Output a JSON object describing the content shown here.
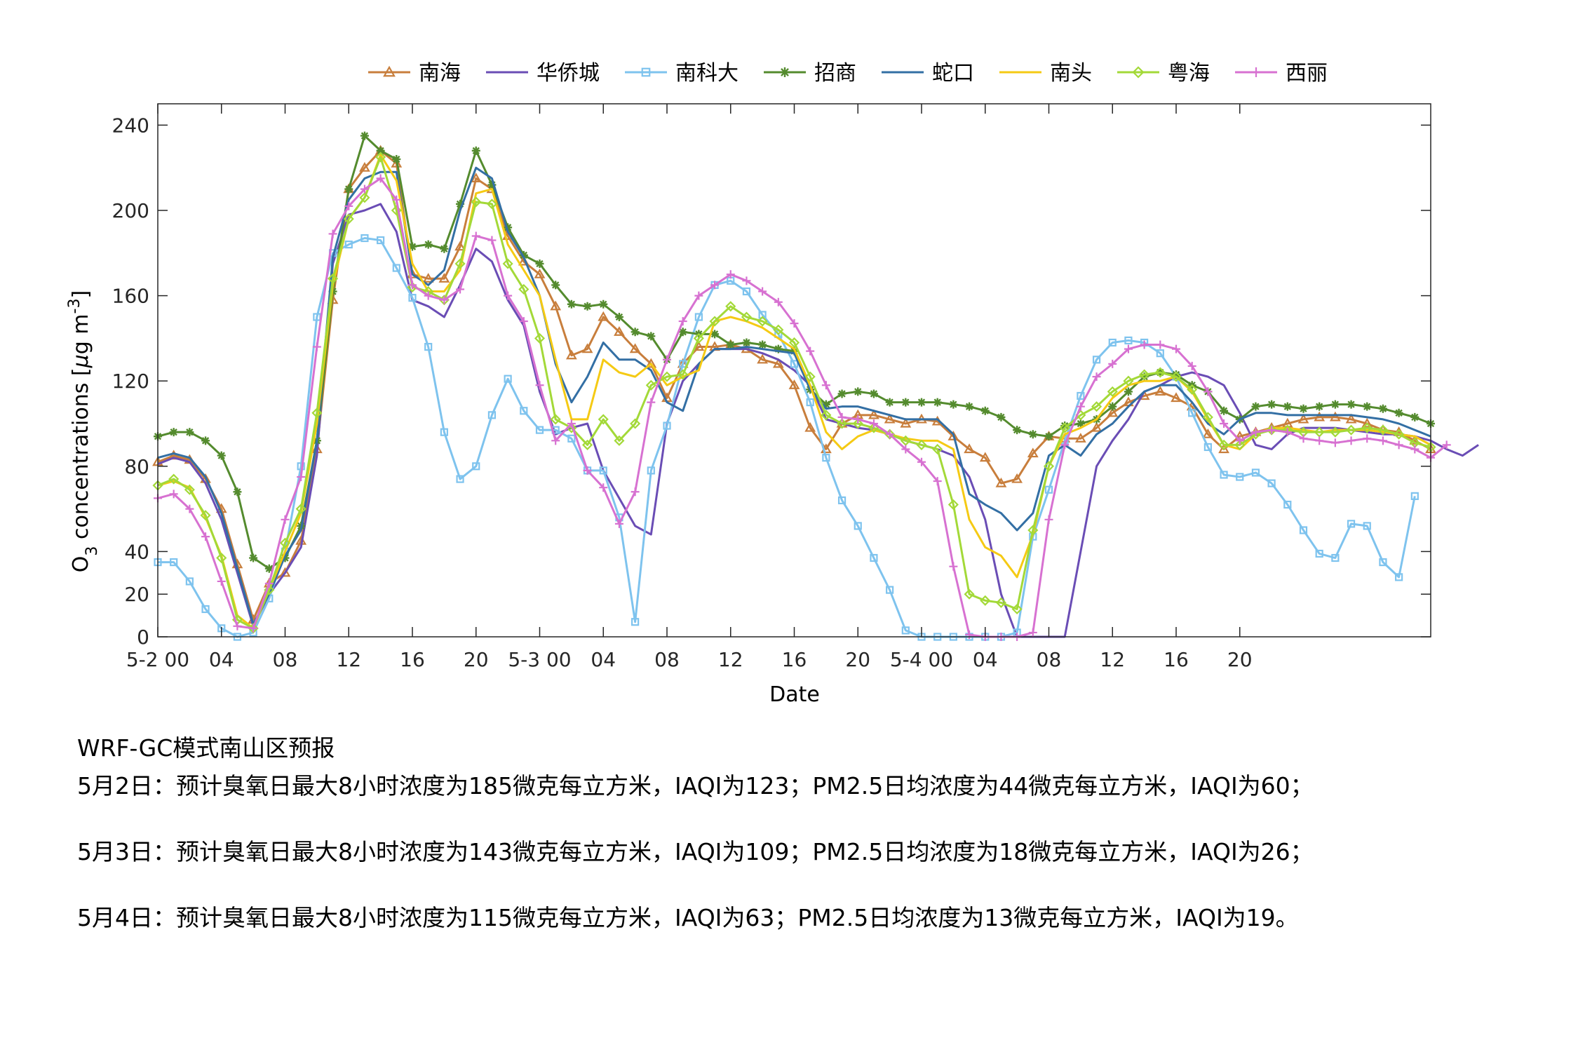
{
  "chart_data": {
    "type": "line",
    "xlabel": "Date",
    "ylabel_main": "O",
    "ylabel_sub": "3",
    "ylabel_rest": " concentrations [",
    "ylabel_mu": "μ",
    "ylabel_unit": "g m",
    "ylabel_sup": "-3",
    "ylabel_end": "]",
    "ylim": [
      0,
      250
    ],
    "yticks": [
      0,
      20,
      40,
      80,
      120,
      160,
      200,
      240
    ],
    "xlim": [
      0,
      80
    ],
    "xticks": [
      {
        "x": 0,
        "label": "5-2 00"
      },
      {
        "x": 4,
        "label": "04"
      },
      {
        "x": 8,
        "label": "08"
      },
      {
        "x": 12,
        "label": "12"
      },
      {
        "x": 16,
        "label": "16"
      },
      {
        "x": 20,
        "label": "20"
      },
      {
        "x": 24,
        "label": "5-3 00"
      },
      {
        "x": 28,
        "label": "04"
      },
      {
        "x": 32,
        "label": "08"
      },
      {
        "x": 36,
        "label": "12"
      },
      {
        "x": 40,
        "label": "16"
      },
      {
        "x": 44,
        "label": "20"
      },
      {
        "x": 48,
        "label": "5-4 00"
      },
      {
        "x": 52,
        "label": "04"
      },
      {
        "x": 56,
        "label": "08"
      },
      {
        "x": 60,
        "label": "12"
      },
      {
        "x": 64,
        "label": "16"
      },
      {
        "x": 68,
        "label": "20"
      }
    ],
    "legend_position": "top-center",
    "series": [
      {
        "name": "南海",
        "color": "#C87E3C",
        "marker": "triangle",
        "values": [
          82,
          85,
          83,
          74,
          60,
          34,
          8,
          25,
          30,
          45,
          88,
          158,
          210,
          220,
          228,
          222,
          170,
          168,
          168,
          183,
          215,
          210,
          188,
          176,
          170,
          155,
          132,
          135,
          150,
          143,
          135,
          128,
          112,
          128,
          136,
          136,
          137,
          135,
          130,
          128,
          118,
          98,
          88,
          100,
          104,
          104,
          102,
          100,
          102,
          101,
          94,
          88,
          84,
          72,
          74,
          86,
          94,
          93,
          93,
          98,
          105,
          110,
          113,
          115,
          112,
          108,
          95,
          88,
          94,
          96,
          98,
          100,
          102,
          103,
          103,
          102,
          100,
          97,
          96,
          92,
          88
        ]
      },
      {
        "name": "华侨城",
        "color": "#6A4DB5",
        "marker": "none",
        "values": [
          81,
          84,
          82,
          72,
          55,
          30,
          5,
          20,
          30,
          42,
          85,
          175,
          198,
          200,
          203,
          190,
          158,
          155,
          150,
          165,
          182,
          176,
          158,
          146,
          115,
          95,
          98,
          100,
          78,
          65,
          52,
          48,
          100,
          120,
          128,
          135,
          135,
          135,
          133,
          130,
          125,
          118,
          102,
          100,
          98,
          97,
          95,
          92,
          90,
          88,
          85,
          75,
          55,
          20,
          0,
          0,
          0,
          0,
          40,
          80,
          92,
          102,
          115,
          118,
          122,
          124,
          122,
          118,
          105,
          90,
          88,
          95,
          98,
          98,
          98,
          97,
          96,
          95,
          95,
          94,
          92,
          88,
          85,
          90
        ]
      },
      {
        "name": "南科大",
        "color": "#7EC3EE",
        "marker": "square",
        "values": [
          35,
          35,
          26,
          13,
          4,
          0,
          2,
          18,
          40,
          80,
          150,
          180,
          184,
          187,
          186,
          173,
          159,
          136,
          96,
          74,
          80,
          104,
          121,
          106,
          97,
          97,
          93,
          78,
          78,
          56,
          7,
          78,
          99,
          128,
          150,
          165,
          167,
          162,
          151,
          142,
          128,
          110,
          84,
          64,
          52,
          37,
          22,
          3,
          0,
          0,
          0,
          0,
          0,
          0,
          2,
          47,
          69,
          92,
          113,
          130,
          138,
          139,
          138,
          133,
          122,
          105,
          89,
          76,
          75,
          77,
          72,
          62,
          50,
          39,
          37,
          53,
          52,
          35,
          28,
          66
        ]
      },
      {
        "name": "招商",
        "color": "#548B2E",
        "marker": "star",
        "values": [
          94,
          96,
          96,
          92,
          85,
          68,
          37,
          32,
          37,
          52,
          92,
          162,
          210,
          235,
          228,
          224,
          183,
          184,
          182,
          203,
          228,
          212,
          192,
          179,
          175,
          165,
          156,
          155,
          156,
          150,
          143,
          141,
          130,
          143,
          142,
          142,
          137,
          138,
          137,
          135,
          134,
          116,
          109,
          114,
          115,
          114,
          110,
          110,
          110,
          110,
          109,
          108,
          106,
          103,
          97,
          95,
          94,
          99,
          100,
          102,
          108,
          115,
          122,
          124,
          123,
          118,
          115,
          106,
          102,
          108,
          109,
          108,
          107,
          108,
          109,
          109,
          108,
          107,
          105,
          103,
          100
        ]
      },
      {
        "name": "蛇口",
        "color": "#336FA4",
        "marker": "none",
        "values": [
          84,
          86,
          84,
          75,
          58,
          32,
          6,
          20,
          38,
          50,
          92,
          178,
          205,
          215,
          218,
          218,
          170,
          165,
          172,
          200,
          220,
          215,
          190,
          178,
          160,
          128,
          110,
          122,
          138,
          130,
          130,
          125,
          110,
          106,
          128,
          135,
          135,
          136,
          135,
          134,
          133,
          116,
          107,
          108,
          108,
          106,
          104,
          102,
          102,
          102,
          95,
          67,
          62,
          58,
          50,
          58,
          85,
          90,
          85,
          95,
          100,
          108,
          115,
          118,
          118,
          110,
          100,
          95,
          102,
          105,
          105,
          104,
          104,
          104,
          104,
          104,
          103,
          102,
          100,
          97,
          94
        ]
      },
      {
        "name": "南头",
        "color": "#F5CA14",
        "marker": "none",
        "values": [
          71,
          73,
          70,
          56,
          38,
          10,
          4,
          22,
          40,
          58,
          100,
          165,
          196,
          206,
          226,
          214,
          175,
          162,
          162,
          172,
          208,
          210,
          184,
          172,
          160,
          130,
          102,
          102,
          130,
          124,
          122,
          128,
          118,
          122,
          125,
          148,
          150,
          148,
          145,
          140,
          135,
          118,
          96,
          88,
          94,
          97,
          95,
          93,
          92,
          92,
          88,
          55,
          42,
          38,
          28,
          48,
          80,
          95,
          98,
          102,
          112,
          118,
          120,
          120,
          122,
          115,
          102,
          90,
          88,
          95,
          98,
          98,
          97,
          96,
          97,
          97,
          97,
          96,
          95,
          94,
          90
        ]
      },
      {
        "name": "粤海",
        "color": "#A3D938",
        "marker": "diamond",
        "values": [
          71,
          74,
          69,
          57,
          37,
          8,
          4,
          22,
          44,
          60,
          105,
          168,
          196,
          206,
          225,
          200,
          164,
          162,
          158,
          175,
          204,
          203,
          175,
          163,
          140,
          102,
          98,
          90,
          102,
          92,
          100,
          118,
          122,
          123,
          140,
          148,
          155,
          150,
          148,
          144,
          138,
          122,
          104,
          100,
          100,
          98,
          95,
          92,
          90,
          88,
          62,
          20,
          17,
          16,
          13,
          50,
          80,
          98,
          104,
          108,
          115,
          120,
          123,
          124,
          122,
          116,
          103,
          90,
          90,
          95,
          97,
          97,
          96,
          96,
          96,
          97,
          98,
          97,
          95,
          91,
          89
        ]
      },
      {
        "name": "西丽",
        "color": "#D771D1",
        "marker": "plus",
        "values": [
          65,
          67,
          60,
          47,
          26,
          5,
          4,
          25,
          55,
          75,
          136,
          189,
          202,
          210,
          215,
          205,
          165,
          160,
          158,
          163,
          188,
          186,
          160,
          148,
          118,
          92,
          100,
          78,
          70,
          53,
          68,
          110,
          130,
          148,
          160,
          165,
          170,
          167,
          162,
          157,
          147,
          134,
          118,
          103,
          102,
          100,
          95,
          88,
          82,
          73,
          33,
          1,
          0,
          0,
          0,
          2,
          55,
          90,
          108,
          122,
          128,
          135,
          137,
          137,
          135,
          127,
          115,
          100,
          92,
          96,
          97,
          96,
          93,
          92,
          91,
          92,
          93,
          92,
          90,
          88,
          84,
          90
        ]
      }
    ]
  },
  "forecast": {
    "title": "WRF-GC模式南山区预报",
    "lines": [
      "5月2日：预计臭氧日最大8小时浓度为185微克每立方米，IAQI为123；PM2.5日均浓度为44微克每立方米，IAQI为60；",
      "5月3日：预计臭氧日最大8小时浓度为143微克每立方米，IAQI为109；PM2.5日均浓度为18微克每立方米，IAQI为26；",
      "5月4日：预计臭氧日最大8小时浓度为115微克每立方米，IAQI为63；PM2.5日均浓度为13微克每立方米，IAQI为19。"
    ]
  }
}
